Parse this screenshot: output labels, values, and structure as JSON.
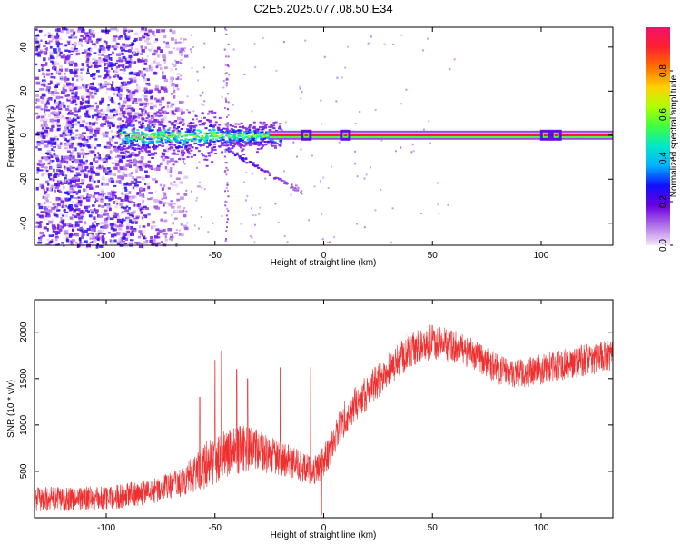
{
  "title": "C2E5.2025.077.08.50.E34",
  "chart_data": [
    {
      "type": "heatmap",
      "xlabel": "Height of straight line (km)",
      "ylabel": "Frequency (Hz)",
      "xlim": [
        -133,
        133
      ],
      "ylim": [
        -50,
        49
      ],
      "xticks": [
        -100,
        -50,
        0,
        50,
        100
      ],
      "xtick_labels": [
        "-100",
        "-50",
        "0",
        "50",
        "100"
      ],
      "yticks": [
        -40,
        -20,
        0,
        20,
        40
      ],
      "ytick_labels": [
        "-40",
        "-20",
        "0",
        "20",
        "40"
      ],
      "colorbar": {
        "label": "Normalized spectral amplitude",
        "range": [
          0,
          1
        ],
        "ticks": [
          0,
          0.2,
          0.4,
          0.6,
          0.8
        ],
        "tick_labels": [
          "0.0",
          "0.2",
          "0.4",
          "0.6",
          "0.8"
        ],
        "colors": [
          "#f4e6f8",
          "#b070e8",
          "#6a00e0",
          "#1010ff",
          "#00b0ff",
          "#00e8c8",
          "#40ff40",
          "#b0ff00",
          "#ffd000",
          "#ff7000",
          "#ff2030",
          "#f0106a"
        ]
      },
      "features": {
        "carrier_frequency_hz": 0,
        "broadband_noise_x_range": [
          -133,
          -70
        ],
        "tone_onset_x": -95,
        "secondary_tone": {
          "x_start": -45,
          "x_end": -10,
          "y_start": -6,
          "y_end": -26
        },
        "highlights_x": [
          -8,
          10,
          102,
          107
        ]
      }
    },
    {
      "type": "line",
      "xlabel": "Height of straight line (km)",
      "ylabel": "SNR (10 * v/v)",
      "xlim": [
        -133,
        133
      ],
      "ylim": [
        0,
        2350
      ],
      "xticks": [
        -100,
        -50,
        0,
        50,
        100
      ],
      "xtick_labels": [
        "-100",
        "-50",
        "0",
        "50",
        "100"
      ],
      "yticks": [
        500,
        1000,
        1500,
        2000
      ],
      "ytick_labels": [
        "500",
        "1000",
        "1500",
        "2000"
      ],
      "color": "#ee3030",
      "trend": {
        "x": [
          -133,
          -100,
          -80,
          -65,
          -55,
          -45,
          -35,
          -25,
          -15,
          -5,
          0,
          5,
          10,
          20,
          30,
          40,
          50,
          60,
          70,
          80,
          90,
          100,
          110,
          120,
          133
        ],
        "y": [
          200,
          210,
          280,
          380,
          560,
          700,
          750,
          680,
          600,
          500,
          600,
          850,
          1100,
          1350,
          1600,
          1800,
          1900,
          1850,
          1750,
          1600,
          1550,
          1600,
          1650,
          1700,
          1750
        ]
      },
      "band_width": [
        260,
        260,
        270,
        300,
        500,
        550,
        500,
        400,
        350,
        300,
        350,
        380,
        380,
        380,
        380,
        380,
        380,
        350,
        330,
        320,
        320,
        330,
        330,
        340,
        350
      ],
      "spikes": [
        {
          "x": -57,
          "y": 1300
        },
        {
          "x": -50,
          "y": 1700
        },
        {
          "x": -47,
          "y": 1800
        },
        {
          "x": -40,
          "y": 1600
        },
        {
          "x": -35,
          "y": 1500
        },
        {
          "x": -20,
          "y": 1620
        },
        {
          "x": -6,
          "y": 1620
        },
        {
          "x": -1,
          "y": 30
        }
      ]
    }
  ]
}
